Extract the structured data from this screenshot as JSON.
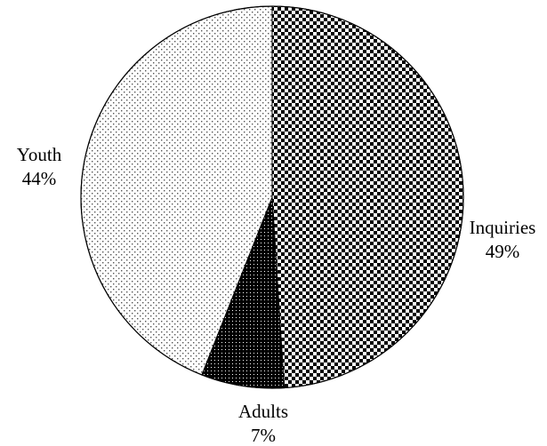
{
  "chart_data": {
    "type": "pie",
    "title": "",
    "start_angle_deg": 0,
    "direction": "clockwise",
    "slices": [
      {
        "label": "Inquiries",
        "value": 49,
        "value_label": "49%",
        "pattern": "checker-fine"
      },
      {
        "label": "Adults",
        "value": 7,
        "value_label": "7%",
        "pattern": "dots-dense"
      },
      {
        "label": "Youth",
        "value": 44,
        "value_label": "44%",
        "pattern": "dots-sparse"
      }
    ],
    "colors": {
      "outline": "#000000",
      "background": "#ffffff",
      "ink": "#000000"
    },
    "legend": "none"
  }
}
